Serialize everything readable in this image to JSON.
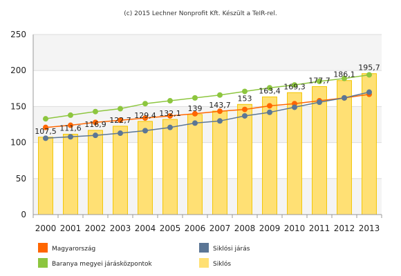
{
  "credit": "(c) 2015 Lechner Nonprofit Kft. Készült a TeIR-rel.",
  "chart_data": {
    "type": "bar",
    "title": "",
    "xlabel": "",
    "ylabel": "",
    "categories": [
      "2000",
      "2001",
      "2002",
      "2003",
      "2004",
      "2005",
      "2006",
      "2007",
      "2008",
      "2009",
      "2010",
      "2011",
      "2012",
      "2013"
    ],
    "ylim": [
      0,
      250
    ],
    "yticks": [
      0,
      50,
      100,
      150,
      200,
      250
    ],
    "grid": true,
    "legend_position": "bottom",
    "series": [
      {
        "name": "Siklós",
        "kind": "bar",
        "color": "#FFE074",
        "values": [
          107.5,
          111.6,
          116.9,
          122.7,
          129.4,
          132.1,
          139,
          143.7,
          153,
          163.4,
          169.3,
          177.7,
          186.1,
          195.7
        ],
        "labels": [
          "107,5",
          "111,6",
          "116,9",
          "122,7",
          "129,4",
          "132,1",
          "139",
          "143,7",
          "153",
          "163,4",
          "169,3",
          "177,7",
          "186,1",
          "195,7"
        ]
      },
      {
        "name": "Magyarország",
        "kind": "line",
        "color": "#FF6600",
        "values": [
          121,
          124,
          128,
          131,
          134,
          137,
          140,
          143.5,
          146,
          151,
          154,
          158,
          162,
          167
        ]
      },
      {
        "name": "Siklósi járás",
        "kind": "line",
        "color": "#5B7695",
        "values": [
          106,
          108,
          110,
          113,
          116.5,
          121,
          127,
          130,
          137,
          142,
          149,
          156,
          162,
          170
        ]
      },
      {
        "name": "Baranya megyei járásközpontok",
        "kind": "line",
        "color": "#8DC63F",
        "values": [
          133,
          138,
          143,
          147,
          154,
          158,
          162,
          166,
          171,
          176,
          180,
          185,
          189,
          194
        ]
      }
    ],
    "legend": [
      {
        "name": "Magyarország",
        "color": "#FF6600"
      },
      {
        "name": "Siklósi járás",
        "color": "#5B7695"
      },
      {
        "name": "Baranya megyei járásközpontok",
        "color": "#8DC63F"
      },
      {
        "name": "Siklós",
        "color": "#FFE074"
      }
    ]
  }
}
